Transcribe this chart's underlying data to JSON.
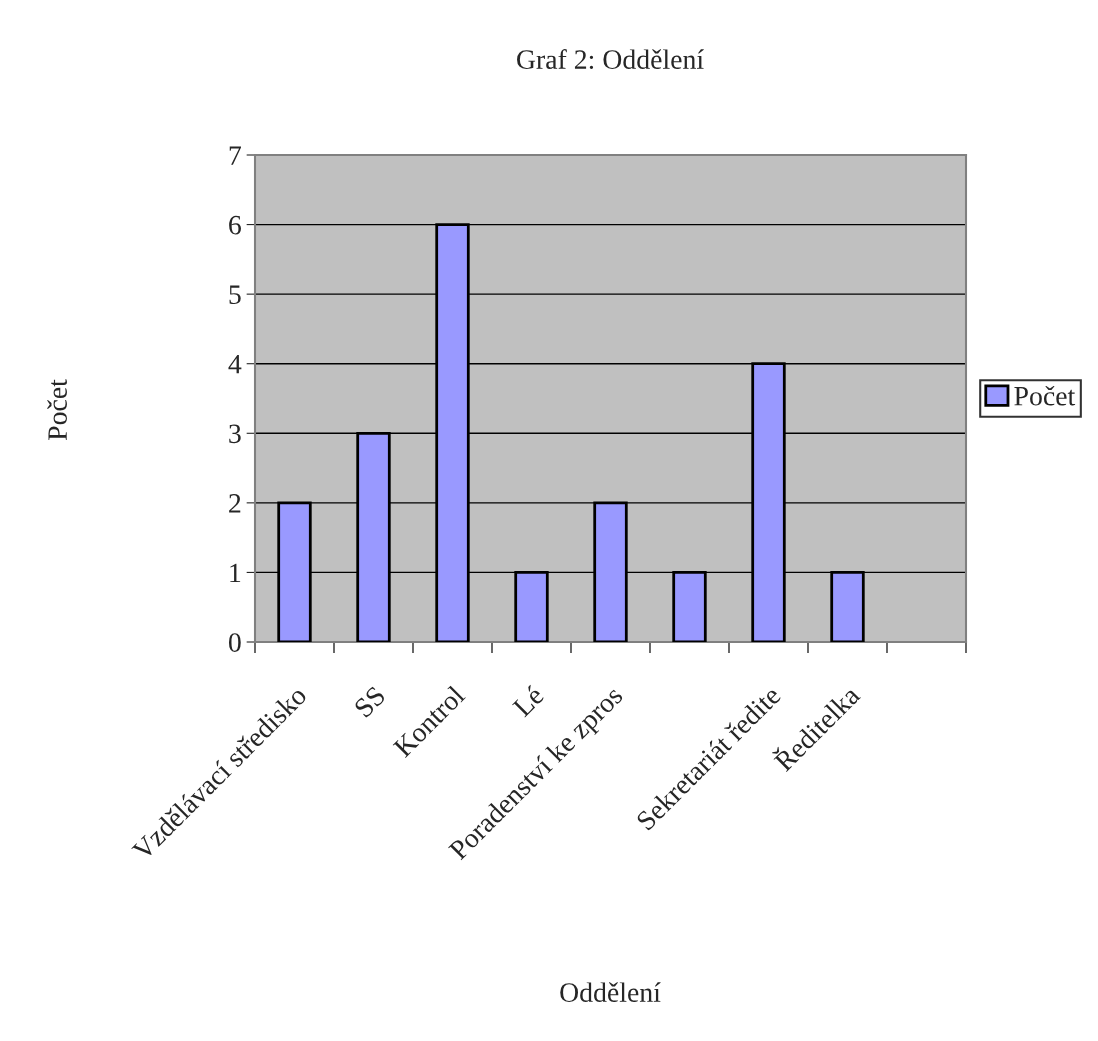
{
  "chart_data": {
    "type": "bar",
    "title": "Graf 2: Oddělení",
    "xlabel": "Oddělení",
    "ylabel": "Počet",
    "categories": [
      "Vzdělávací středisko",
      "SS",
      "Kontrol",
      "Lé",
      "Poradenství ke zpros",
      null,
      "Sekretariát ředite",
      "Ředitelka",
      null
    ],
    "series": [
      {
        "name": "Počet",
        "color": "#9999ff",
        "values": [
          2,
          3,
          6,
          1,
          2,
          1,
          4,
          1,
          null
        ]
      }
    ],
    "ylim": [
      0,
      7
    ],
    "yticks": [
      0,
      1,
      2,
      3,
      4,
      5,
      6,
      7
    ],
    "grid": "y",
    "legend": "right"
  }
}
